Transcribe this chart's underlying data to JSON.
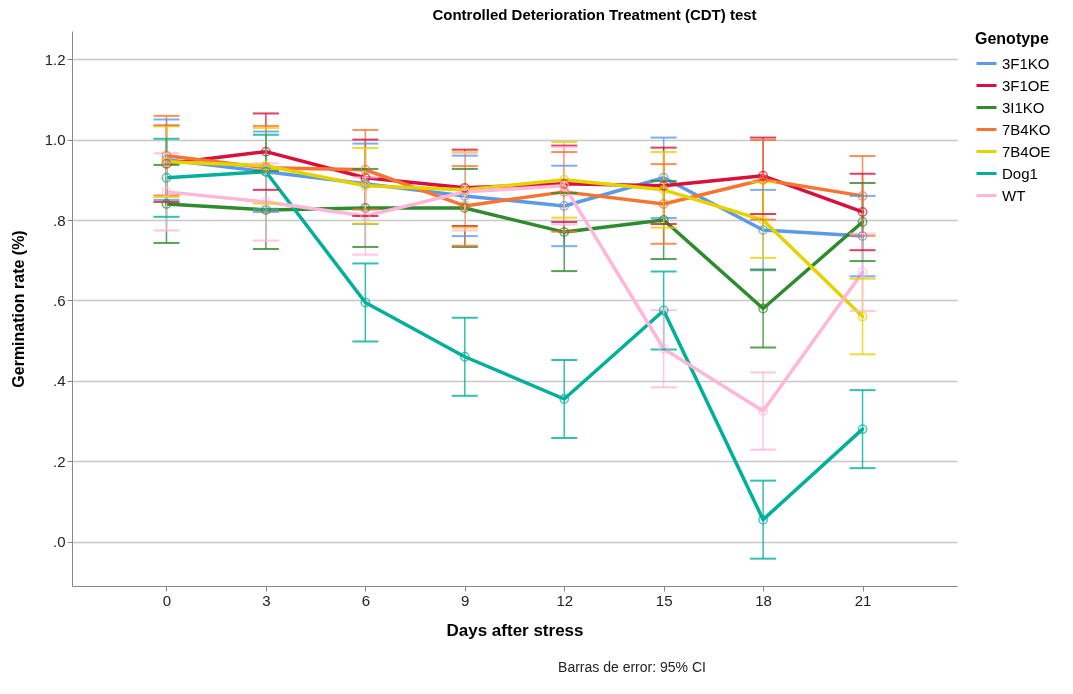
{
  "chart_data": {
    "type": "line",
    "title": "Controlled Deterioration Treatment (CDT) test",
    "xlabel": "Days after stress",
    "ylabel": "Germination rate (%)",
    "legend_title": "Genotype",
    "annotations": [
      "Barras de error: 95% CI"
    ],
    "categories": [
      "0",
      "3",
      "6",
      "9",
      "12",
      "15",
      "18",
      "21"
    ],
    "ylim": [
      -0.11,
      1.27
    ],
    "yticks": [
      {
        "value": 0,
        "label": ".0"
      },
      {
        "value": 0.2,
        "label": ".2"
      },
      {
        "value": 0.4,
        "label": ".4"
      },
      {
        "value": 0.6,
        "label": ".6"
      },
      {
        "value": 0.8,
        "label": ".8"
      },
      {
        "value": 1.0,
        "label": "1.0"
      },
      {
        "value": 1.2,
        "label": "1.2"
      }
    ],
    "grid": "y",
    "legend": "top right",
    "marker": "circle",
    "line_style": "solid",
    "series": [
      {
        "name": "3F1KO",
        "color": "#5b9be6",
        "values": [
          0.95,
          0.92,
          0.89,
          0.86,
          0.835,
          0.905,
          0.775,
          0.76
        ],
        "errors": [
          0.1,
          0.1,
          0.1,
          0.1,
          0.1,
          0.1,
          0.1,
          0.1
        ]
      },
      {
        "name": "3F1OE",
        "color": "#d8103c",
        "values": [
          0.94,
          0.97,
          0.905,
          0.88,
          0.89,
          0.885,
          0.91,
          0.82
        ],
        "errors": [
          0.095,
          0.095,
          0.095,
          0.095,
          0.095,
          0.095,
          0.095,
          0.095
        ]
      },
      {
        "name": "3I1KO",
        "color": "#2e8b2e",
        "values": [
          0.84,
          0.825,
          0.83,
          0.83,
          0.77,
          0.8,
          0.58,
          0.795
        ],
        "errors": [
          0.097,
          0.097,
          0.097,
          0.097,
          0.097,
          0.097,
          0.097,
          0.097
        ]
      },
      {
        "name": "7B4KO",
        "color": "#f87431",
        "values": [
          0.96,
          0.93,
          0.925,
          0.835,
          0.87,
          0.84,
          0.9,
          0.86
        ],
        "errors": [
          0.099,
          0.104,
          0.099,
          0.099,
          0.099,
          0.099,
          0.099,
          0.099
        ]
      },
      {
        "name": "7B4OE",
        "color": "#e6d200",
        "values": [
          0.945,
          0.935,
          0.885,
          0.875,
          0.9,
          0.875,
          0.8,
          0.56
        ],
        "errors": [
          0.088,
          0.094,
          0.094,
          0.094,
          0.094,
          0.094,
          0.094,
          0.094
        ]
      },
      {
        "name": "Dog1",
        "color": "#00b09b",
        "values": [
          0.905,
          0.92,
          0.595,
          0.46,
          0.355,
          0.575,
          0.055,
          0.28
        ],
        "errors": [
          0.097,
          0.092,
          0.097,
          0.097,
          0.097,
          0.097,
          0.097,
          0.097
        ]
      },
      {
        "name": "WT",
        "color": "#ffb6d9",
        "values": [
          0.87,
          0.845,
          0.81,
          0.87,
          0.885,
          0.48,
          0.325,
          0.67
        ],
        "errors": [
          0.096,
          0.096,
          0.096,
          0.096,
          0.096,
          0.096,
          0.096,
          0.096
        ]
      }
    ]
  }
}
